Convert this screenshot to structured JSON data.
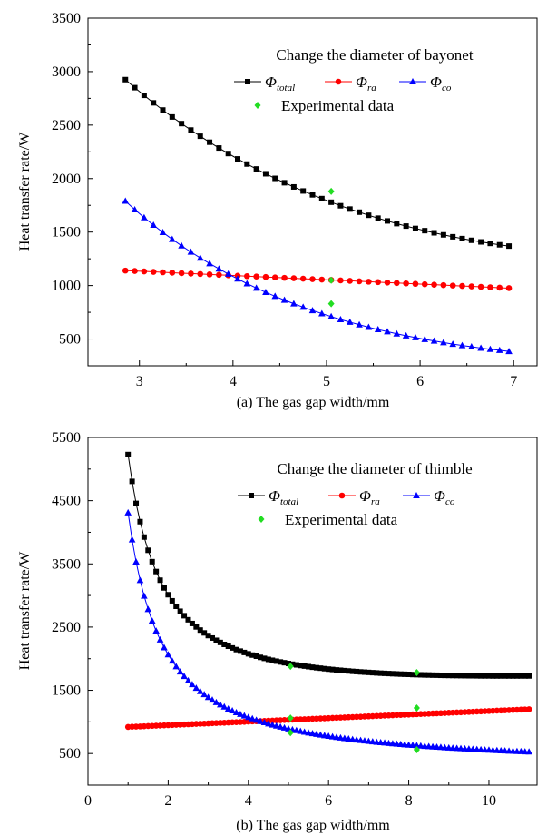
{
  "chart_data": [
    {
      "type": "line",
      "caption": "(a) The gas gap width/mm",
      "ylabel": "Heat transfer rate/W",
      "title": "Change the diameter of bayonet",
      "xlim": [
        2.45,
        7.25
      ],
      "ylim": [
        250,
        3500
      ],
      "xticks": [
        3,
        4,
        5,
        6,
        7
      ],
      "xtick_labels": [
        "3",
        "4",
        "5",
        "6",
        "7"
      ],
      "yticks": [
        500,
        1000,
        1500,
        2000,
        2500,
        3000,
        3500
      ],
      "ytick_labels": [
        "500",
        "1000",
        "1500",
        "2000",
        "2500",
        "3000",
        "3500"
      ],
      "legend_labels": {
        "phi": "Φ",
        "total": "total",
        "ra": "ra",
        "co": "co",
        "experimental": "Experimental data"
      },
      "series": [
        {
          "name": "total",
          "color": "#000000",
          "marker": "square",
          "x": [
            2.85,
            2.95,
            3.05,
            3.15,
            3.25,
            3.35,
            3.45,
            3.55,
            3.65,
            3.75,
            3.85,
            3.95,
            4.05,
            4.15,
            4.25,
            4.35,
            4.45,
            4.55,
            4.65,
            4.75,
            4.85,
            4.95,
            5.05,
            5.15,
            5.25,
            5.35,
            5.45,
            5.55,
            5.65,
            5.75,
            5.85,
            5.95,
            6.05,
            6.15,
            6.25,
            6.35,
            6.45,
            6.55,
            6.65,
            6.75,
            6.85,
            6.95
          ],
          "y": [
            2925,
            2850,
            2778,
            2708,
            2641,
            2576,
            2514,
            2454,
            2396,
            2340,
            2286,
            2234,
            2184,
            2136,
            2090,
            2045,
            2002,
            1961,
            1922,
            1884,
            1848,
            1813,
            1779,
            1746,
            1715,
            1686,
            1657,
            1630,
            1604,
            1579,
            1556,
            1534,
            1513,
            1493,
            1474,
            1456,
            1439,
            1423,
            1408,
            1394,
            1381,
            1369
          ]
        },
        {
          "name": "ra",
          "color": "#ff0000",
          "marker": "circle",
          "x": [
            2.85,
            2.95,
            3.05,
            3.15,
            3.25,
            3.35,
            3.45,
            3.55,
            3.65,
            3.75,
            3.85,
            3.95,
            4.05,
            4.15,
            4.25,
            4.35,
            4.45,
            4.55,
            4.65,
            4.75,
            4.85,
            4.95,
            5.05,
            5.15,
            5.25,
            5.35,
            5.45,
            5.55,
            5.65,
            5.75,
            5.85,
            5.95,
            6.05,
            6.15,
            6.25,
            6.35,
            6.45,
            6.55,
            6.65,
            6.75,
            6.85,
            6.95
          ],
          "y": [
            1140,
            1136,
            1132,
            1128,
            1124,
            1120,
            1116,
            1112,
            1108,
            1104,
            1100,
            1096,
            1092,
            1088,
            1084,
            1080,
            1076,
            1072,
            1068,
            1064,
            1060,
            1056,
            1052,
            1048,
            1044,
            1040,
            1036,
            1032,
            1028,
            1024,
            1020,
            1016,
            1012,
            1008,
            1004,
            1000,
            996,
            992,
            988,
            984,
            980,
            976
          ]
        },
        {
          "name": "co",
          "color": "#0000ff",
          "marker": "triangle",
          "x": [
            2.85,
            2.95,
            3.05,
            3.15,
            3.25,
            3.35,
            3.45,
            3.55,
            3.65,
            3.75,
            3.85,
            3.95,
            4.05,
            4.15,
            4.25,
            4.35,
            4.45,
            4.55,
            4.65,
            4.75,
            4.85,
            4.95,
            5.05,
            5.15,
            5.25,
            5.35,
            5.45,
            5.55,
            5.65,
            5.75,
            5.85,
            5.95,
            6.05,
            6.15,
            6.25,
            6.35,
            6.45,
            6.55,
            6.65,
            6.75,
            6.85,
            6.95
          ],
          "y": [
            1790,
            1710,
            1635,
            1565,
            1497,
            1433,
            1372,
            1314,
            1258,
            1206,
            1156,
            1108,
            1062,
            1018,
            977,
            937,
            900,
            864,
            830,
            798,
            767,
            738,
            710,
            683,
            658,
            634,
            611,
            589,
            569,
            549,
            531,
            514,
            497,
            482,
            467,
            453,
            440,
            428,
            416,
            405,
            395,
            385
          ]
        }
      ],
      "experimental": {
        "color": "#22dd22",
        "x": [
          5.05,
          5.05,
          5.05
        ],
        "y": [
          1880,
          1050,
          830
        ]
      }
    },
    {
      "type": "line",
      "caption": "(b) The gas gap width/mm",
      "ylabel": "Heat transfer rate/W",
      "title": "Change the diameter of thimble",
      "xlim": [
        0,
        11.2
      ],
      "ylim": [
        0,
        5500
      ],
      "xticks": [
        0,
        2,
        4,
        6,
        8,
        10
      ],
      "xtick_labels": [
        "0",
        "2",
        "4",
        "6",
        "8",
        "10"
      ],
      "yticks": [
        500,
        1500,
        2500,
        3500,
        4500,
        5500
      ],
      "ytick_labels": [
        "500",
        "1500",
        "2500",
        "3500",
        "4500",
        "5500"
      ],
      "legend_labels": {
        "phi": "Φ",
        "total": "total",
        "ra": "ra",
        "co": "co",
        "experimental": "Experimental data"
      },
      "series": [
        {
          "name": "total",
          "color": "#000000",
          "marker": "square"
        },
        {
          "name": "ra",
          "color": "#ff0000",
          "marker": "circle"
        },
        {
          "name": "co",
          "color": "#0000ff",
          "marker": "triangle"
        }
      ],
      "experimental": {
        "color": "#22dd22",
        "x": [
          5.05,
          5.05,
          5.05,
          8.2,
          8.2,
          8.2
        ],
        "y": [
          1880,
          1060,
          830,
          1780,
          1220,
          560
        ]
      }
    }
  ]
}
